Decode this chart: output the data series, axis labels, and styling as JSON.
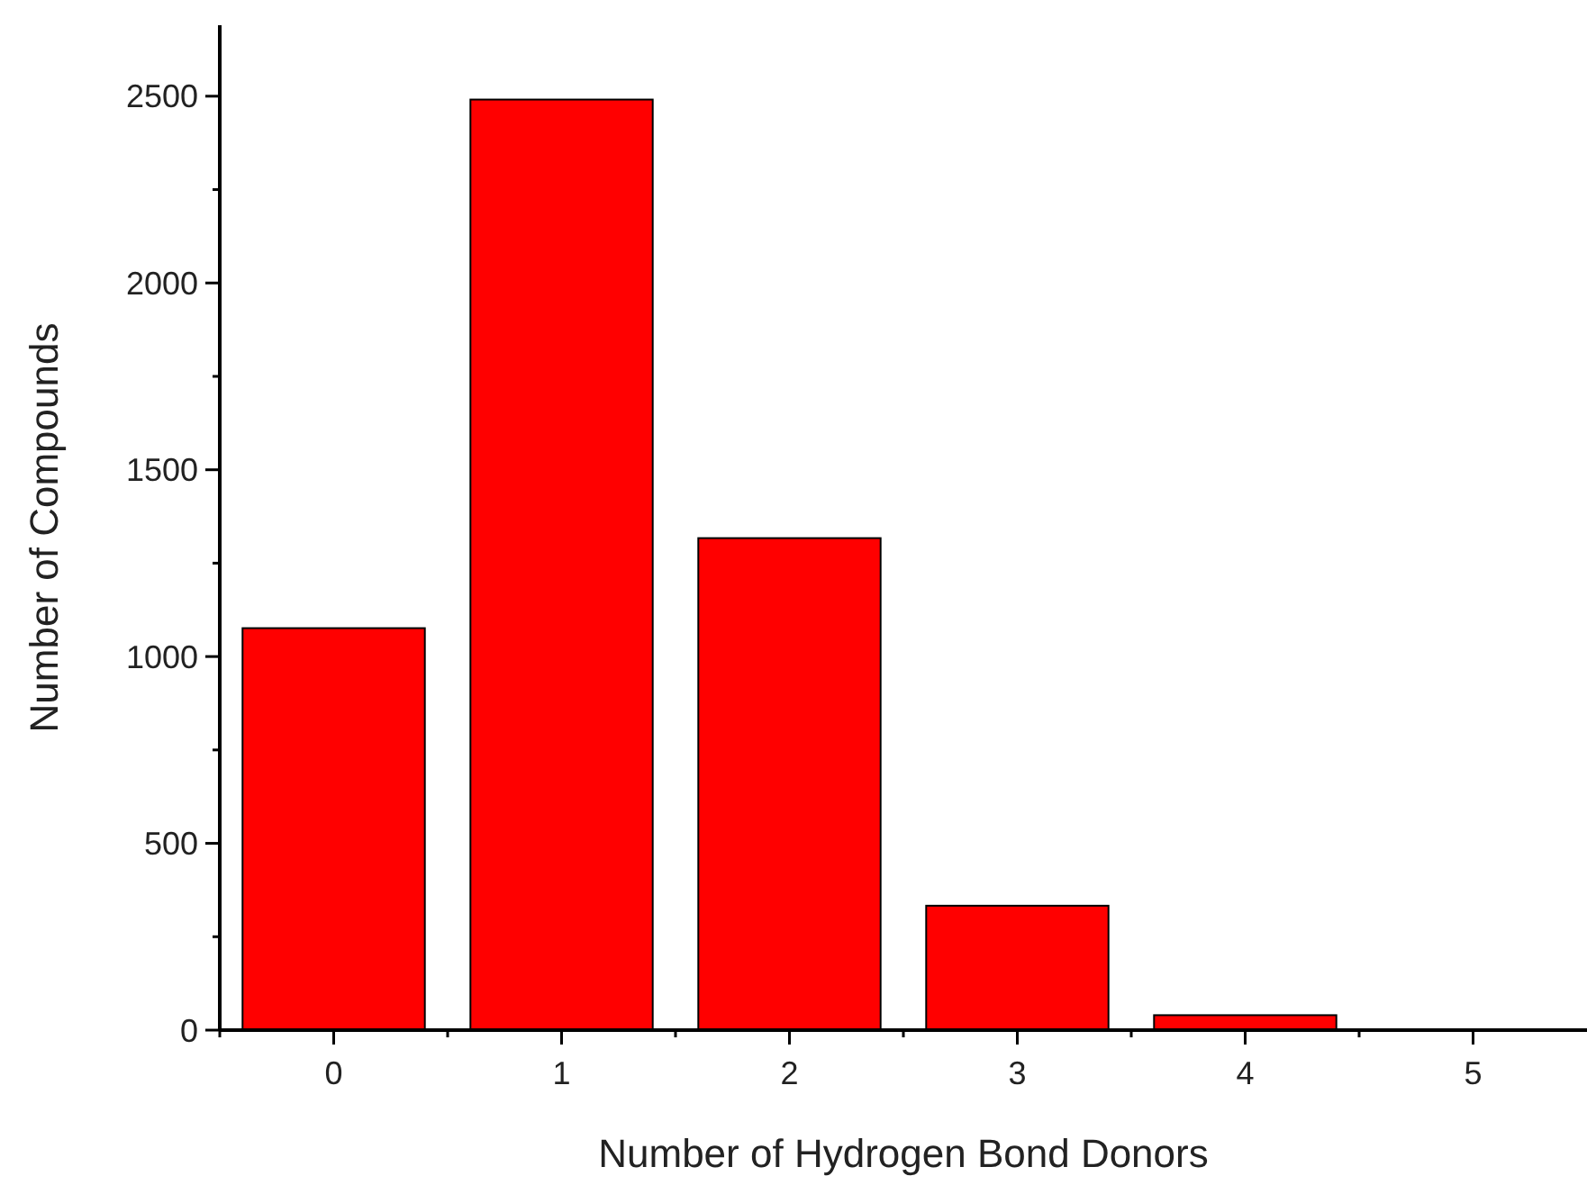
{
  "chart_data": {
    "type": "bar",
    "xlabel": "Number of Hydrogen Bond Donors",
    "ylabel": "Number of Compounds",
    "categories": [
      "0",
      "1",
      "2",
      "3",
      "4",
      "5"
    ],
    "values": [
      1076,
      2491,
      1317,
      333,
      40,
      0
    ],
    "color": "#ff0000",
    "ylim": [
      0,
      2690
    ],
    "yticks": [
      0,
      {
        "value": 250,
        "label": null
      },
      500,
      {
        "value": 750,
        "label": null
      },
      1000,
      {
        "value": 1250,
        "label": null
      },
      1500,
      {
        "value": 1750,
        "label": null
      },
      2000,
      {
        "value": 2250,
        "label": null
      },
      2500
    ],
    "grid": false
  }
}
